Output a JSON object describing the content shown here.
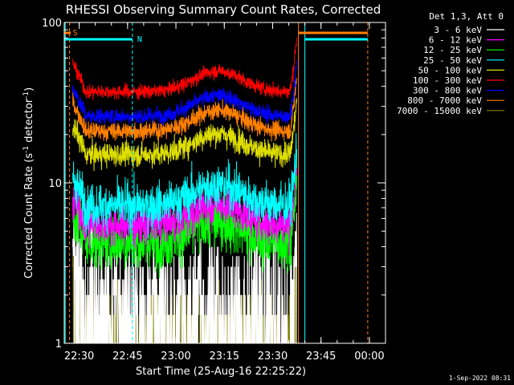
{
  "chart_data": {
    "type": "line",
    "title": "RHESSI Observing Summary Count Rates, Corrected",
    "xlabel": "Start Time (25-Aug-16 22:25:22)",
    "ylabel_main": "Corrected Count Rate (s",
    "ylabel_sup1": "-1",
    "ylabel_mid": " detector",
    "ylabel_sup2": "-1",
    "ylabel_end": ")",
    "y_scale": "log",
    "ylim": [
      1,
      100
    ],
    "y_ticks": [
      {
        "value": 1,
        "label": "1"
      },
      {
        "value": 10,
        "label": "10"
      },
      {
        "value": 100,
        "label": "100"
      }
    ],
    "xlim": [
      "22:25:22",
      "00:05:00"
    ],
    "x_ticks": [
      {
        "time": "22:30",
        "label": "22:30"
      },
      {
        "time": "22:45",
        "label": "22:45"
      },
      {
        "time": "23:00",
        "label": "23:00"
      },
      {
        "time": "23:15",
        "label": "23:15"
      },
      {
        "time": "23:30",
        "label": "23:30"
      },
      {
        "time": "23:45",
        "label": "23:45"
      },
      {
        "time": "00:00",
        "label": "00:00"
      }
    ],
    "legend_header": "Det 1,3, Att 0",
    "legend_position": "top-right, outside plot",
    "series": [
      {
        "name": "3 - 6 keV",
        "color": "#ffffff",
        "level": 2.2,
        "noise": 0.6
      },
      {
        "name": "6 - 12 keV",
        "color": "#ff00ff",
        "level": 5.5,
        "noise": 0.2
      },
      {
        "name": "12 - 25 keV",
        "color": "#00ff00",
        "level": 4.3,
        "noise": 0.28
      },
      {
        "name": "25 - 50 keV",
        "color": "#00ffff",
        "level": 7.2,
        "noise": 0.22
      },
      {
        "name": "50 - 100 keV",
        "color": "#dddd00",
        "level": 15,
        "noise": 0.12
      },
      {
        "name": "100 - 300 keV",
        "color": "#ff0000",
        "level": 37,
        "noise": 0.07
      },
      {
        "name": "300 - 800 keV",
        "color": "#0000ff",
        "level": 26,
        "noise": 0.08
      },
      {
        "name": "800 - 7000 keV",
        "color": "#ff8000",
        "level": 21,
        "noise": 0.09
      },
      {
        "name": "7000 - 15000 keV",
        "color": "#808000",
        "level": 1.4,
        "noise": 0.35
      }
    ],
    "annotations": [
      {
        "text": "S",
        "color": "#ff8000",
        "time": "22:27:00"
      },
      {
        "text": "N",
        "color": "#00ffff",
        "time": "22:47:00"
      }
    ],
    "status_bars": [
      {
        "color": "#00ffff",
        "from": "22:25:22",
        "to": "22:46:30",
        "label": "N"
      },
      {
        "color": "#00ffff",
        "from": "23:40:00",
        "to": "23:59:30"
      },
      {
        "color": "#ff8000",
        "from": "23:38:00",
        "to": "23:59:30"
      }
    ],
    "vertical_markers": [
      {
        "time": "22:25:40",
        "color": "#00ffff",
        "style": "solid"
      },
      {
        "time": "22:27:00",
        "color": "#ff8000",
        "style": "dashed"
      },
      {
        "time": "22:46:30",
        "color": "#00ffff",
        "style": "dashed"
      },
      {
        "time": "23:38:00",
        "color": "#ff8000",
        "style": "solid"
      },
      {
        "time": "23:40:00",
        "color": "#00ffff",
        "style": "solid"
      },
      {
        "time": "23:59:30",
        "color": "#ff8000",
        "style": "dashed"
      }
    ],
    "grid": false
  },
  "footer_timestamp": "1-Sep-2022 08:31"
}
